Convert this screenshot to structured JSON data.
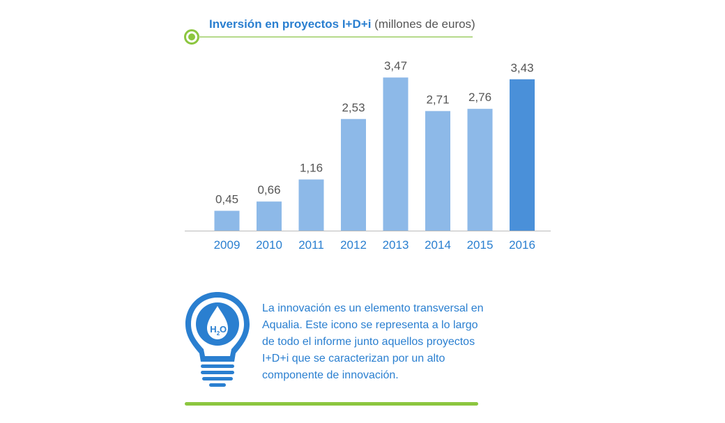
{
  "chart_data": {
    "type": "bar",
    "title_bold": "Inversión en proyectos I+D+i",
    "title_unit": "(millones de euros)",
    "categories": [
      "2009",
      "2010",
      "2011",
      "2012",
      "2013",
      "2014",
      "2015",
      "2016"
    ],
    "values": [
      0.45,
      0.66,
      1.16,
      2.53,
      3.47,
      2.71,
      2.76,
      3.43
    ],
    "value_labels": [
      "0,45",
      "0,66",
      "1,16",
      "2,53",
      "3,47",
      "2,71",
      "2,76",
      "3,43"
    ],
    "highlight_index": 7,
    "ylim": [
      0,
      3.6
    ],
    "grid": false,
    "colors": {
      "bar": "#8db9e8",
      "highlight": "#4a90d9",
      "value_label": "#555555",
      "tick_label": "#2a7fd0",
      "baseline": "#bbbbbb"
    }
  },
  "info": {
    "icon": "lightbulb-h2o-icon",
    "icon_text": "H",
    "icon_sub": "2",
    "icon_text_end": "O",
    "text": "La innovación es un elemento transversal en Aqualia. Este icono se representa a lo largo de todo el informe junto aquellos proyectos I+D+i que se caracterizan por un alto componente de innovación."
  },
  "colors": {
    "accent_green": "#8cc63f",
    "accent_blue": "#2a7fd0"
  }
}
